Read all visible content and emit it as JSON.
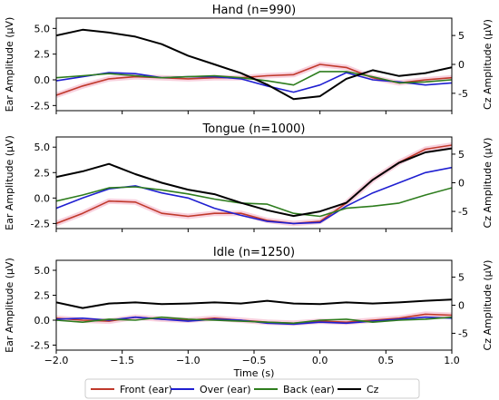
{
  "colors": {
    "Front (ear)": "#c0392b",
    "Over (ear)": "#1f1fd1",
    "Back (ear)": "#2e7d1e",
    "Cz": "#000000",
    "band_front": "#f6c6d6"
  },
  "legend": [
    "Front (ear)",
    "Over (ear)",
    "Back (ear)",
    "Cz"
  ],
  "chart_data": [
    {
      "type": "line",
      "title": "Hand (n=990)",
      "xlabel": "",
      "ylabel": "Ear Amplitude (μV)",
      "ylabel_right": "Cz Amplitude (μV)",
      "xlim": [
        -2.0,
        1.0
      ],
      "ylim": [
        -3.0,
        6.0
      ],
      "ylim_right": [
        -8.0,
        8.0
      ],
      "yticks": [
        "5.0",
        "2.5",
        "0.0",
        "-2.5"
      ],
      "yticks_right": [
        "5",
        "0",
        "-5"
      ],
      "x": [
        -2.0,
        -1.8,
        -1.6,
        -1.4,
        -1.2,
        -1.0,
        -0.8,
        -0.6,
        -0.4,
        -0.2,
        0.0,
        0.2,
        0.4,
        0.6,
        0.8,
        1.0
      ],
      "series": [
        {
          "name": "Front (ear)",
          "axis": "left",
          "values": [
            -1.5,
            -0.6,
            0.1,
            0.3,
            0.2,
            0.1,
            0.2,
            0.2,
            0.4,
            0.5,
            1.5,
            1.2,
            0.2,
            -0.3,
            0.0,
            0.2
          ]
        },
        {
          "name": "Over (ear)",
          "axis": "left",
          "values": [
            -0.1,
            0.3,
            0.7,
            0.6,
            0.2,
            0.3,
            0.3,
            0.1,
            -0.6,
            -1.2,
            -0.5,
            0.7,
            0.0,
            -0.2,
            -0.5,
            -0.3
          ]
        },
        {
          "name": "Back (ear)",
          "axis": "left",
          "values": [
            0.2,
            0.4,
            0.6,
            0.4,
            0.2,
            0.3,
            0.4,
            0.2,
            -0.1,
            -0.5,
            0.8,
            0.8,
            0.3,
            -0.3,
            -0.2,
            0.0
          ]
        },
        {
          "name": "Cz",
          "axis": "right",
          "values": [
            5.0,
            6.0,
            5.5,
            4.8,
            3.5,
            1.5,
            0.0,
            -1.5,
            -3.5,
            -6.0,
            -5.5,
            -2.5,
            -1.0,
            -2.0,
            -1.5,
            -0.5
          ]
        }
      ]
    },
    {
      "type": "line",
      "title": "Tongue (n=1000)",
      "xlabel": "",
      "ylabel": "Ear Amplitude (μV)",
      "ylabel_right": "Cz Amplitude (μV)",
      "xlim": [
        -2.0,
        1.0
      ],
      "ylim": [
        -3.0,
        6.0
      ],
      "ylim_right": [
        -8.0,
        8.0
      ],
      "yticks": [
        "5.0",
        "2.5",
        "0.0",
        "-2.5"
      ],
      "yticks_right": [
        "5",
        "0",
        "-5"
      ],
      "x": [
        -2.0,
        -1.8,
        -1.6,
        -1.4,
        -1.2,
        -1.0,
        -0.8,
        -0.6,
        -0.4,
        -0.2,
        0.0,
        0.2,
        0.4,
        0.6,
        0.8,
        1.0
      ],
      "series": [
        {
          "name": "Front (ear)",
          "axis": "left",
          "values": [
            -2.5,
            -1.5,
            -0.3,
            -0.4,
            -1.5,
            -1.8,
            -1.5,
            -1.5,
            -2.2,
            -2.5,
            -2.3,
            -0.5,
            1.8,
            3.5,
            4.8,
            5.2
          ]
        },
        {
          "name": "Over (ear)",
          "axis": "left",
          "values": [
            -1.0,
            0.0,
            0.9,
            1.2,
            0.5,
            0.0,
            -1.0,
            -1.7,
            -2.3,
            -2.5,
            -2.4,
            -0.8,
            0.5,
            1.5,
            2.5,
            3.0
          ]
        },
        {
          "name": "Back (ear)",
          "axis": "left",
          "values": [
            -0.3,
            0.3,
            1.0,
            1.1,
            0.8,
            0.4,
            -0.1,
            -0.5,
            -0.6,
            -1.5,
            -1.8,
            -1.0,
            -0.8,
            -0.5,
            0.3,
            1.0
          ]
        },
        {
          "name": "Cz",
          "axis": "right",
          "values": [
            1.0,
            2.0,
            3.3,
            1.5,
            0.0,
            -1.2,
            -2.0,
            -3.5,
            -4.8,
            -5.8,
            -5.0,
            -3.5,
            0.5,
            3.5,
            5.3,
            6.0
          ]
        }
      ]
    },
    {
      "type": "line",
      "title": "Idle (n=1250)",
      "xlabel": "Time (s)",
      "ylabel": "Ear Amplitude (μV)",
      "ylabel_right": "Cz Amplitude (μV)",
      "xlim": [
        -2.0,
        1.0
      ],
      "ylim": [
        -3.0,
        6.0
      ],
      "ylim_right": [
        -8.0,
        8.0
      ],
      "yticks": [
        "5.0",
        "2.5",
        "0.0",
        "-2.5"
      ],
      "yticks_right": [
        "5",
        "0",
        "-5"
      ],
      "xticks": [
        "−2.0",
        "−1.5",
        "−1.0",
        "−0.5",
        "0.0",
        "0.5",
        "1.0"
      ],
      "x": [
        -2.0,
        -1.8,
        -1.6,
        -1.4,
        -1.2,
        -1.0,
        -0.8,
        -0.6,
        -0.4,
        -0.2,
        0.0,
        0.2,
        0.4,
        0.6,
        0.8,
        1.0
      ],
      "series": [
        {
          "name": "Front (ear)",
          "axis": "left",
          "values": [
            0.2,
            0.0,
            -0.1,
            0.3,
            0.1,
            0.0,
            0.2,
            0.0,
            -0.2,
            -0.3,
            -0.1,
            -0.2,
            0.0,
            0.2,
            0.6,
            0.5
          ]
        },
        {
          "name": "Over (ear)",
          "axis": "left",
          "values": [
            0.1,
            0.2,
            0.0,
            0.3,
            0.1,
            -0.1,
            0.1,
            0.0,
            -0.3,
            -0.4,
            -0.2,
            -0.3,
            -0.1,
            0.1,
            0.3,
            0.2
          ]
        },
        {
          "name": "Back (ear)",
          "axis": "left",
          "values": [
            0.0,
            -0.2,
            0.1,
            0.0,
            0.3,
            0.1,
            0.0,
            -0.1,
            -0.2,
            -0.3,
            0.0,
            0.1,
            -0.2,
            0.0,
            0.1,
            0.3
          ]
        },
        {
          "name": "Cz",
          "axis": "right",
          "values": [
            0.5,
            -0.5,
            0.3,
            0.5,
            0.2,
            0.3,
            0.5,
            0.3,
            0.8,
            0.3,
            0.2,
            0.5,
            0.3,
            0.5,
            0.8,
            1.0
          ]
        }
      ]
    }
  ]
}
